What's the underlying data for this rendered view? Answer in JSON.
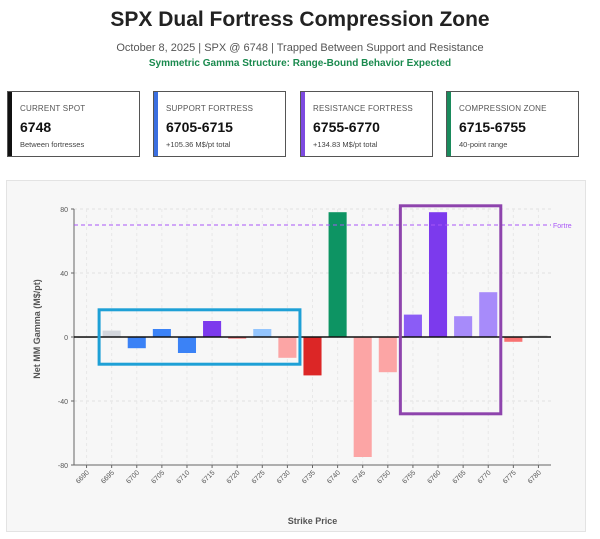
{
  "header": {
    "title": "SPX Dual Fortress Compression Zone",
    "subtitle": "October 8, 2025 | SPX @ 6748 | Trapped Between Support and Resistance",
    "note": "Symmetric Gamma Structure: Range-Bound Behavior Expected"
  },
  "cards": [
    {
      "label": "CURRENT SPOT",
      "value": "6748",
      "sub": "Between fortresses",
      "color": "#111111"
    },
    {
      "label": "SUPPORT FORTRESS",
      "value": "6705-6715",
      "sub": "+105.36 M$/pt total",
      "color": "#3b6fe0"
    },
    {
      "label": "RESISTANCE FORTRESS",
      "value": "6755-6770",
      "sub": "+134.83 M$/pt total",
      "color": "#7d4ae0"
    },
    {
      "label": "COMPRESSION ZONE",
      "value": "6715-6755",
      "sub": "40-point range",
      "color": "#1a8a5c"
    }
  ],
  "chart_data": {
    "type": "bar",
    "xlabel": "Strike Price",
    "ylabel": "Net MM Gamma (M$/pt)",
    "ylim": [
      -80,
      80
    ],
    "yticks": [
      -80,
      -40,
      0,
      40,
      80
    ],
    "reference_line": {
      "value": 70,
      "label": "Fortre",
      "color": "#a855f7"
    },
    "categories": [
      "6690",
      "6695",
      "6700",
      "6705",
      "6710",
      "6715",
      "6720",
      "6725",
      "6730",
      "6735",
      "6740",
      "6745",
      "6750",
      "6755",
      "6760",
      "6765",
      "6770",
      "6775",
      "6780"
    ],
    "values": [
      0,
      4,
      -7,
      5,
      -10,
      10,
      -1,
      5,
      -13,
      -24,
      78,
      -75,
      -22,
      14,
      78,
      13,
      28,
      -3,
      1
    ],
    "bar_colors": [
      "#d9d9d9",
      "#d3d6dc",
      "#3b82f6",
      "#3b82f6",
      "#3b82f6",
      "#7c3aed",
      "#f87171",
      "#93c5fd",
      "#fca5a5",
      "#dc2626",
      "#0d9463",
      "#fca5a5",
      "#fca5a5",
      "#8b5cf6",
      "#7c3aed",
      "#a78bfa",
      "#a78bfa",
      "#f87171",
      "#d9d9d9"
    ],
    "highlight_boxes": [
      {
        "from": "6695",
        "to": "6730",
        "y_from": -17,
        "y_to": 17,
        "color": "#1ea0d6"
      },
      {
        "from": "6755",
        "to": "6770",
        "y_from": -48,
        "y_to": 82,
        "color": "#8e44ad"
      }
    ]
  }
}
